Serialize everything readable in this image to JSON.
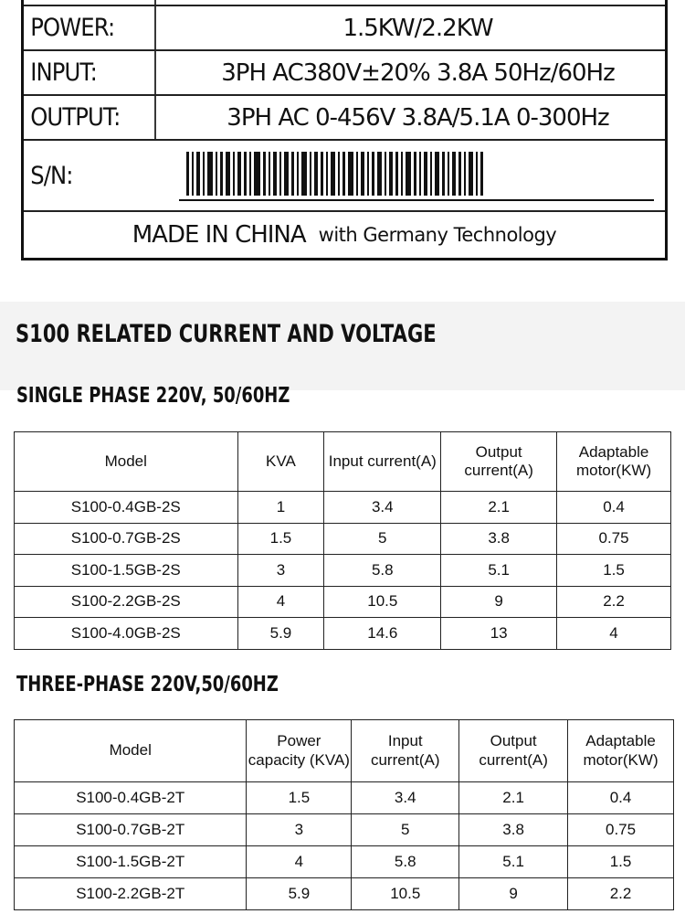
{
  "nameplate": {
    "rows": [
      {
        "label": "POWER:",
        "value": "1.5KW/2.2KW"
      },
      {
        "label": "INPUT:",
        "value": "3PH AC380V±20% 3.8A 50Hz/60Hz"
      },
      {
        "label": "OUTPUT:",
        "value": "3PH AC 0-456V 3.8A/5.1A  0-300Hz"
      }
    ],
    "sn_label": "S/N:",
    "made_in": "MADE IN CHINA",
    "made_with": "with Germany Technology"
  },
  "section_title": "S100 RELATED CURRENT AND VOLTAGE",
  "single_phase": {
    "title": "SINGLE PHASE 220V, 50/60HZ",
    "headers": [
      "Model",
      "KVA",
      "Input current(A)",
      "Output current(A)",
      "Adaptable motor(KW)"
    ],
    "rows": [
      [
        "S100-0.4GB-2S",
        "1",
        "3.4",
        "2.1",
        "0.4"
      ],
      [
        "S100-0.7GB-2S",
        "1.5",
        "5",
        "3.8",
        "0.75"
      ],
      [
        "S100-1.5GB-2S",
        "3",
        "5.8",
        "5.1",
        "1.5"
      ],
      [
        "S100-2.2GB-2S",
        "4",
        "10.5",
        "9",
        "2.2"
      ],
      [
        "S100-4.0GB-2S",
        "5.9",
        "14.6",
        "13",
        "4"
      ]
    ]
  },
  "three_phase": {
    "title": "THREE-PHASE 220V,50/60HZ",
    "headers": [
      "Model",
      "Power capacity (KVA)",
      "Input current(A)",
      "Output current(A)",
      "Adaptable motor(KW)"
    ],
    "rows": [
      [
        "S100-0.4GB-2T",
        "1.5",
        "3.4",
        "2.1",
        "0.4"
      ],
      [
        "S100-0.7GB-2T",
        "3",
        "5",
        "3.8",
        "0.75"
      ],
      [
        "S100-1.5GB-2T",
        "4",
        "5.8",
        "5.1",
        "1.5"
      ],
      [
        "S100-2.2GB-2T",
        "5.9",
        "10.5",
        "9",
        "2.2"
      ]
    ]
  }
}
